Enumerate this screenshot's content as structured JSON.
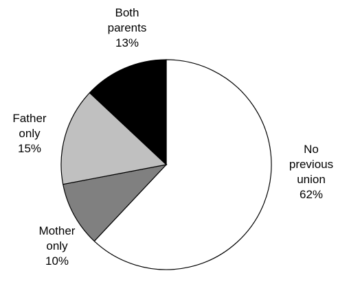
{
  "chart_data": {
    "type": "pie",
    "title": "",
    "start_angle_deg": 0,
    "direction": "clockwise",
    "slices": [
      {
        "label_lines": [
          "No",
          "previous",
          "union"
        ],
        "value": 62,
        "value_label": "62%",
        "color": "#ffffff"
      },
      {
        "label_lines": [
          "Mother",
          "only"
        ],
        "value": 10,
        "value_label": "10%",
        "color": "#808080"
      },
      {
        "label_lines": [
          "Father",
          "only"
        ],
        "value": 15,
        "value_label": "15%",
        "color": "#c0c0c0"
      },
      {
        "label_lines": [
          "Both",
          "parents"
        ],
        "value": 13,
        "value_label": "13%",
        "color": "#000000"
      }
    ]
  }
}
